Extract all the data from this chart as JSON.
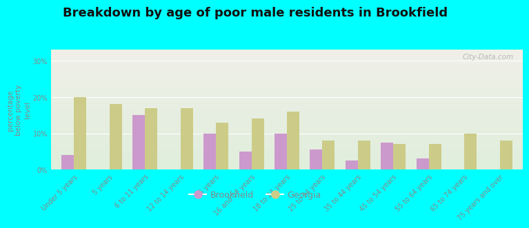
{
  "title": "Breakdown by age of poor male residents in Brookfield",
  "ylabel": "percentage\nbelow poverty\nlevel",
  "categories": [
    "Under 5 years",
    "5 years",
    "6 to 11 years",
    "12 to 14 years",
    "15 years",
    "16 and 17 years",
    "18 to 24 years",
    "25 to 34 years",
    "35 to 44 years",
    "45 to 54 years",
    "55 to 64 years",
    "65 to 74 years",
    "75 years and over"
  ],
  "brookfield": [
    4,
    0,
    15,
    0,
    10,
    5,
    10,
    5.5,
    2.5,
    7.5,
    3,
    0,
    0
  ],
  "georgia": [
    20,
    18,
    17,
    17,
    13,
    14,
    16,
    8,
    8,
    7,
    7,
    10,
    8
  ],
  "brookfield_color": "#cc99cc",
  "georgia_color": "#cccc88",
  "background_color": "#00ffff",
  "plot_bg_top": "#f0f0e8",
  "plot_bg_bottom": "#e0eedc",
  "ylim": [
    0,
    33
  ],
  "yticks": [
    0,
    10,
    20,
    30
  ],
  "ytick_labels": [
    "0%",
    "10%",
    "20%",
    "30%"
  ],
  "title_fontsize": 13,
  "axis_label_fontsize": 7.5,
  "tick_fontsize": 7,
  "legend_fontsize": 9,
  "watermark": "City-Data.com"
}
